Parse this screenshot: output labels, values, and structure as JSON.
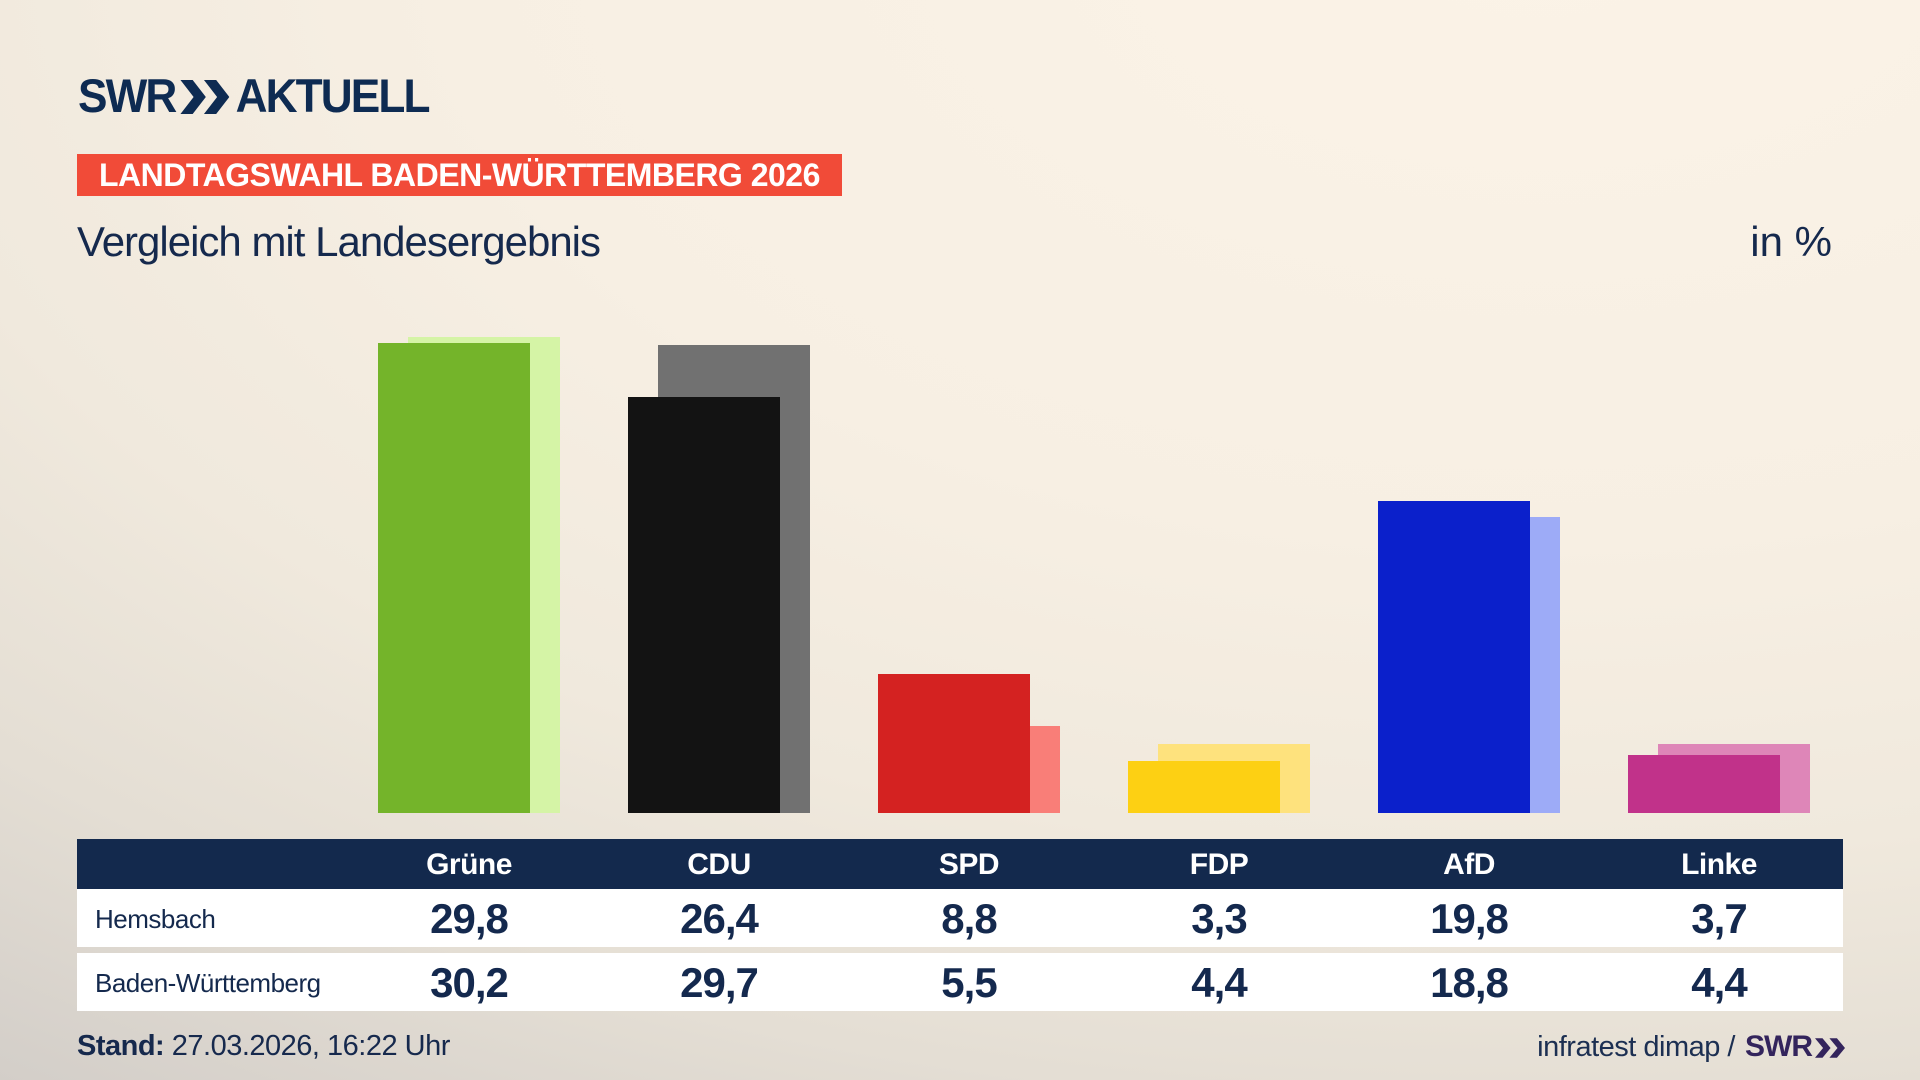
{
  "header": {
    "logo": {
      "swr": "SWR",
      "aktuell": "AKTUELL"
    },
    "badge": "LANDTAGSWAHL BADEN-WÜRTTEMBERG 2026",
    "title": "Vergleich mit Landesergebnis",
    "unit": "in %"
  },
  "chart_data": {
    "type": "bar",
    "categories": [
      "Grüne",
      "CDU",
      "SPD",
      "FDP",
      "AfD",
      "Linke"
    ],
    "series": [
      {
        "name": "Hemsbach",
        "values": [
          29.8,
          26.4,
          8.8,
          3.3,
          19.8,
          3.7
        ],
        "colors": [
          "#74b42a",
          "#131313",
          "#d42221",
          "#fdd013",
          "#0b20cb",
          "#c1328a"
        ]
      },
      {
        "name": "Baden-Württemberg",
        "values": [
          30.2,
          29.7,
          5.5,
          4.4,
          18.8,
          4.4
        ],
        "colors": [
          "#d5f4a6",
          "#717171",
          "#f97e78",
          "#fee27d",
          "#9dabf7",
          "#de86b8"
        ]
      }
    ],
    "ylim": [
      0,
      32
    ],
    "unit": "%",
    "grid": false,
    "legend_position": "table-below",
    "value_format": "decimal-comma"
  },
  "footer": {
    "stand_label": "Stand:",
    "stand_value": " 27.03.2026, 16:22 Uhr",
    "source": "infratest dimap / ",
    "source_brand": "SWR"
  },
  "colors": {
    "badge_bg": "#f14b38",
    "navy": "#13294d",
    "table_header_bg": "#13294d",
    "footer_brand": "#33245c",
    "background_light": "#fbf3e7",
    "background_dark": "#c9c5c0"
  }
}
